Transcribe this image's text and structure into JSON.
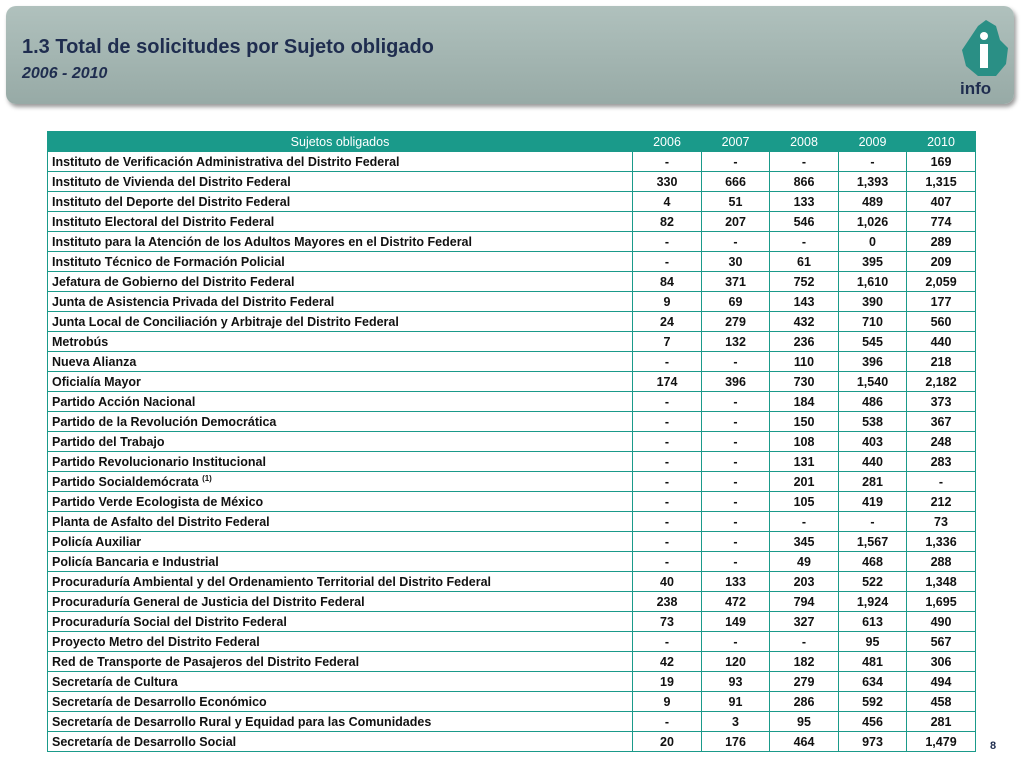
{
  "header": {
    "title": "1.3 Total de solicitudes por Sujeto obligado",
    "subtitle": "2006 - 2010",
    "logo": "info"
  },
  "table": {
    "columns": [
      "Sujetos obligados",
      "2006",
      "2007",
      "2008",
      "2009",
      "2010"
    ],
    "rows": [
      {
        "name": "Instituto de Verificación Administrativa del Distrito Federal",
        "values": [
          "-",
          "-",
          "-",
          "-",
          "169"
        ]
      },
      {
        "name": "Instituto de Vivienda del Distrito Federal",
        "values": [
          "330",
          "666",
          "866",
          "1,393",
          "1,315"
        ]
      },
      {
        "name": "Instituto del Deporte del Distrito Federal",
        "values": [
          "4",
          "51",
          "133",
          "489",
          "407"
        ]
      },
      {
        "name": "Instituto Electoral del Distrito Federal",
        "values": [
          "82",
          "207",
          "546",
          "1,026",
          "774"
        ]
      },
      {
        "name": "Instituto para la Atención de los Adultos Mayores en el Distrito Federal",
        "values": [
          "-",
          "-",
          "-",
          "0",
          "289"
        ]
      },
      {
        "name": "Instituto Técnico de Formación Policial",
        "values": [
          "-",
          "30",
          "61",
          "395",
          "209"
        ]
      },
      {
        "name": "Jefatura de Gobierno del Distrito Federal",
        "values": [
          "84",
          "371",
          "752",
          "1,610",
          "2,059"
        ]
      },
      {
        "name": "Junta de Asistencia Privada del Distrito Federal",
        "values": [
          "9",
          "69",
          "143",
          "390",
          "177"
        ]
      },
      {
        "name": "Junta Local de Conciliación y Arbitraje del Distrito Federal",
        "values": [
          "24",
          "279",
          "432",
          "710",
          "560"
        ]
      },
      {
        "name": "Metrobús",
        "values": [
          "7",
          "132",
          "236",
          "545",
          "440"
        ]
      },
      {
        "name": "Nueva Alianza",
        "values": [
          "-",
          "-",
          "110",
          "396",
          "218"
        ]
      },
      {
        "name": "Oficialía Mayor",
        "values": [
          "174",
          "396",
          "730",
          "1,540",
          "2,182"
        ]
      },
      {
        "name": "Partido Acción Nacional",
        "values": [
          "-",
          "-",
          "184",
          "486",
          "373"
        ]
      },
      {
        "name": "Partido de la Revolución Democrática",
        "values": [
          "-",
          "-",
          "150",
          "538",
          "367"
        ]
      },
      {
        "name": "Partido del Trabajo",
        "values": [
          "-",
          "-",
          "108",
          "403",
          "248"
        ]
      },
      {
        "name": "Partido Revolucionario Institucional",
        "values": [
          "-",
          "-",
          "131",
          "440",
          "283"
        ]
      },
      {
        "name": "Partido Socialdemócrata",
        "note": "(1)",
        "values": [
          "-",
          "-",
          "201",
          "281",
          "-"
        ]
      },
      {
        "name": "Partido Verde Ecologista de México",
        "values": [
          "-",
          "-",
          "105",
          "419",
          "212"
        ]
      },
      {
        "name": "Planta de Asfalto del Distrito Federal",
        "values": [
          "-",
          "-",
          "-",
          "-",
          "73"
        ]
      },
      {
        "name": "Policía Auxiliar",
        "values": [
          "-",
          "-",
          "345",
          "1,567",
          "1,336"
        ]
      },
      {
        "name": "Policía Bancaria e Industrial",
        "values": [
          "-",
          "-",
          "49",
          "468",
          "288"
        ]
      },
      {
        "name": "Procuraduría Ambiental y del Ordenamiento Territorial del Distrito Federal",
        "values": [
          "40",
          "133",
          "203",
          "522",
          "1,348"
        ]
      },
      {
        "name": "Procuraduría General de Justicia del Distrito Federal",
        "values": [
          "238",
          "472",
          "794",
          "1,924",
          "1,695"
        ]
      },
      {
        "name": "Procuraduría Social del Distrito Federal",
        "values": [
          "73",
          "149",
          "327",
          "613",
          "490"
        ]
      },
      {
        "name": "Proyecto Metro del Distrito Federal",
        "values": [
          "-",
          "-",
          "-",
          "95",
          "567"
        ]
      },
      {
        "name": "Red de Transporte de Pasajeros del Distrito Federal",
        "values": [
          "42",
          "120",
          "182",
          "481",
          "306"
        ]
      },
      {
        "name": "Secretaría de Cultura",
        "values": [
          "19",
          "93",
          "279",
          "634",
          "494"
        ]
      },
      {
        "name": "Secretaría de Desarrollo Económico",
        "values": [
          "9",
          "91",
          "286",
          "592",
          "458"
        ]
      },
      {
        "name": "Secretaría de Desarrollo Rural y Equidad para las Comunidades",
        "values": [
          "-",
          "3",
          "95",
          "456",
          "281"
        ]
      },
      {
        "name": "Secretaría de Desarrollo Social",
        "values": [
          "20",
          "176",
          "464",
          "973",
          "1,479"
        ]
      }
    ]
  },
  "page_number": "8"
}
